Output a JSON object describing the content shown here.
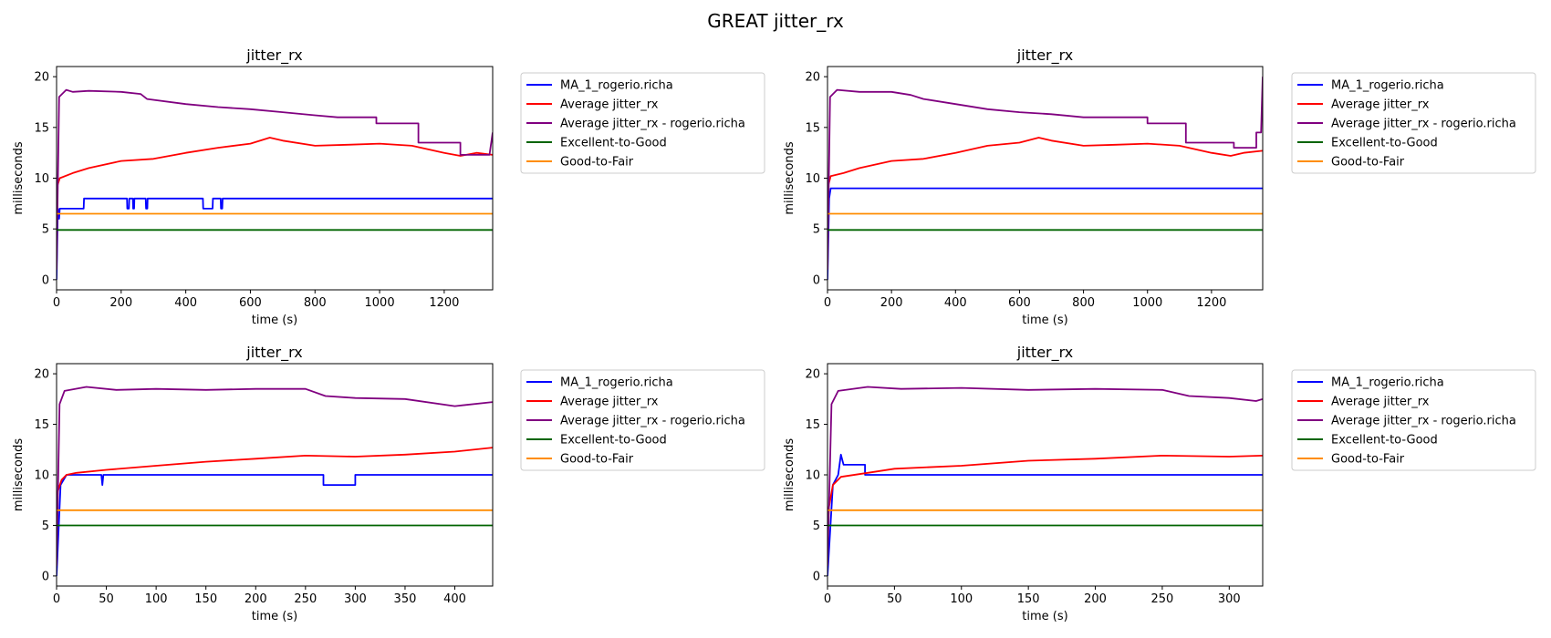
{
  "figure": {
    "title": "GREAT jitter_rx"
  },
  "legend": {
    "entries": [
      {
        "label": "MA_1_rogerio.richa",
        "color": "#0000ff"
      },
      {
        "label": "Average jitter_rx",
        "color": "#ff0000"
      },
      {
        "label": "Average jitter_rx - rogerio.richa",
        "color": "#800080"
      },
      {
        "label": "Excellent-to-Good",
        "color": "#006400"
      },
      {
        "label": "Good-to-Fair",
        "color": "#ff8c00"
      }
    ]
  },
  "chart_data": [
    {
      "type": "line",
      "title": "jitter_rx",
      "xlabel": "time (s)",
      "ylabel": "milliseconds",
      "xlim": [
        0,
        1350
      ],
      "ylim": [
        -1,
        21
      ],
      "xticks": [
        0,
        200,
        400,
        600,
        800,
        1000,
        1200
      ],
      "yticks": [
        0,
        5,
        10,
        15,
        20
      ],
      "legend_position": "outside-right",
      "series": [
        {
          "name": "MA_1_rogerio.richa",
          "color": "#0000ff",
          "points": [
            [
              0,
              0
            ],
            [
              4,
              7
            ],
            [
              8,
              6
            ],
            [
              10,
              7
            ],
            [
              84,
              7
            ],
            [
              85,
              8
            ],
            [
              218,
              8
            ],
            [
              219,
              7
            ],
            [
              224,
              7
            ],
            [
              225,
              8
            ],
            [
              236,
              8
            ],
            [
              237,
              7
            ],
            [
              240,
              7
            ],
            [
              241,
              8
            ],
            [
              276,
              8
            ],
            [
              277,
              7
            ],
            [
              281,
              7
            ],
            [
              282,
              8
            ],
            [
              453,
              8
            ],
            [
              454,
              7
            ],
            [
              483,
              7
            ],
            [
              484,
              8
            ],
            [
              508,
              8
            ],
            [
              509,
              7
            ],
            [
              513,
              7
            ],
            [
              514,
              8
            ],
            [
              1350,
              8
            ]
          ]
        },
        {
          "name": "Average jitter_rx",
          "color": "#ff0000",
          "points": [
            [
              0,
              9
            ],
            [
              10,
              10
            ],
            [
              50,
              10.5
            ],
            [
              100,
              11
            ],
            [
              200,
              11.7
            ],
            [
              300,
              11.9
            ],
            [
              400,
              12.5
            ],
            [
              500,
              13
            ],
            [
              600,
              13.4
            ],
            [
              660,
              14
            ],
            [
              700,
              13.7
            ],
            [
              800,
              13.2
            ],
            [
              900,
              13.3
            ],
            [
              1000,
              13.4
            ],
            [
              1100,
              13.2
            ],
            [
              1200,
              12.5
            ],
            [
              1250,
              12.2
            ],
            [
              1300,
              12.5
            ],
            [
              1350,
              12.3
            ]
          ]
        },
        {
          "name": "Average jitter_rx - rogerio.richa",
          "color": "#800080",
          "points": [
            [
              0,
              1
            ],
            [
              8,
              18
            ],
            [
              30,
              18.7
            ],
            [
              50,
              18.5
            ],
            [
              100,
              18.6
            ],
            [
              200,
              18.5
            ],
            [
              260,
              18.3
            ],
            [
              280,
              17.8
            ],
            [
              400,
              17.3
            ],
            [
              500,
              17
            ],
            [
              600,
              16.8
            ],
            [
              700,
              16.5
            ],
            [
              800,
              16.2
            ],
            [
              870,
              16
            ],
            [
              990,
              16
            ],
            [
              990,
              15.4
            ],
            [
              1120,
              15.4
            ],
            [
              1120,
              13.5
            ],
            [
              1250,
              13.5
            ],
            [
              1250,
              12.3
            ],
            [
              1340,
              12.3
            ],
            [
              1350,
              14.5
            ]
          ]
        },
        {
          "name": "Excellent-to-Good",
          "color": "#006400",
          "points": [
            [
              0,
              4.9
            ],
            [
              1350,
              4.9
            ]
          ]
        },
        {
          "name": "Good-to-Fair",
          "color": "#ff8c00",
          "points": [
            [
              0,
              6.5
            ],
            [
              1350,
              6.5
            ]
          ]
        }
      ]
    },
    {
      "type": "line",
      "title": "jitter_rx",
      "xlabel": "time (s)",
      "ylabel": "milliseconds",
      "xlim": [
        0,
        1360
      ],
      "ylim": [
        -1,
        21
      ],
      "xticks": [
        0,
        200,
        400,
        600,
        800,
        1000,
        1200
      ],
      "yticks": [
        0,
        5,
        10,
        15,
        20
      ],
      "legend_position": "outside-right",
      "series": [
        {
          "name": "MA_1_rogerio.richa",
          "color": "#0000ff",
          "points": [
            [
              0,
              0
            ],
            [
              5,
              8
            ],
            [
              10,
              9
            ],
            [
              1360,
              9
            ]
          ]
        },
        {
          "name": "Average jitter_rx",
          "color": "#ff0000",
          "points": [
            [
              0,
              9
            ],
            [
              10,
              10.2
            ],
            [
              50,
              10.5
            ],
            [
              100,
              11
            ],
            [
              200,
              11.7
            ],
            [
              300,
              11.9
            ],
            [
              400,
              12.5
            ],
            [
              500,
              13.2
            ],
            [
              600,
              13.5
            ],
            [
              660,
              14
            ],
            [
              700,
              13.7
            ],
            [
              800,
              13.2
            ],
            [
              900,
              13.3
            ],
            [
              1000,
              13.4
            ],
            [
              1100,
              13.2
            ],
            [
              1200,
              12.5
            ],
            [
              1260,
              12.2
            ],
            [
              1300,
              12.5
            ],
            [
              1360,
              12.7
            ]
          ]
        },
        {
          "name": "Average jitter_rx - rogerio.richa",
          "color": "#800080",
          "points": [
            [
              0,
              1
            ],
            [
              8,
              18
            ],
            [
              30,
              18.7
            ],
            [
              100,
              18.5
            ],
            [
              200,
              18.5
            ],
            [
              260,
              18.2
            ],
            [
              300,
              17.8
            ],
            [
              400,
              17.3
            ],
            [
              500,
              16.8
            ],
            [
              600,
              16.5
            ],
            [
              700,
              16.3
            ],
            [
              800,
              16
            ],
            [
              1000,
              16
            ],
            [
              1000,
              15.4
            ],
            [
              1120,
              15.4
            ],
            [
              1120,
              13.5
            ],
            [
              1270,
              13.5
            ],
            [
              1270,
              13
            ],
            [
              1340,
              13
            ],
            [
              1340,
              14.5
            ],
            [
              1355,
              14.5
            ],
            [
              1360,
              20
            ]
          ]
        },
        {
          "name": "Excellent-to-Good",
          "color": "#006400",
          "points": [
            [
              0,
              4.9
            ],
            [
              1360,
              4.9
            ]
          ]
        },
        {
          "name": "Good-to-Fair",
          "color": "#ff8c00",
          "points": [
            [
              0,
              6.5
            ],
            [
              1360,
              6.5
            ]
          ]
        }
      ]
    },
    {
      "type": "line",
      "title": "jitter_rx",
      "xlabel": "time (s)",
      "ylabel": "milliseconds",
      "xlim": [
        0,
        438
      ],
      "ylim": [
        -1,
        21
      ],
      "xticks": [
        0,
        50,
        100,
        150,
        200,
        250,
        300,
        350,
        400
      ],
      "yticks": [
        0,
        5,
        10,
        15,
        20
      ],
      "legend_position": "outside-right",
      "series": [
        {
          "name": "MA_1_rogerio.richa",
          "color": "#0000ff",
          "points": [
            [
              0,
              0
            ],
            [
              4,
              9
            ],
            [
              10,
              10
            ],
            [
              45,
              10
            ],
            [
              46,
              9
            ],
            [
              47,
              10
            ],
            [
              268,
              10
            ],
            [
              268,
              9
            ],
            [
              300,
              9
            ],
            [
              300,
              10
            ],
            [
              438,
              10
            ]
          ]
        },
        {
          "name": "Average jitter_rx",
          "color": "#ff0000",
          "points": [
            [
              0,
              8
            ],
            [
              5,
              9.5
            ],
            [
              10,
              10
            ],
            [
              20,
              10.2
            ],
            [
              50,
              10.5
            ],
            [
              100,
              10.9
            ],
            [
              150,
              11.3
            ],
            [
              200,
              11.6
            ],
            [
              250,
              11.9
            ],
            [
              300,
              11.8
            ],
            [
              350,
              12
            ],
            [
              400,
              12.3
            ],
            [
              438,
              12.7
            ]
          ]
        },
        {
          "name": "Average jitter_rx - rogerio.richa",
          "color": "#800080",
          "points": [
            [
              0,
              1
            ],
            [
              3,
              17
            ],
            [
              8,
              18.3
            ],
            [
              30,
              18.7
            ],
            [
              60,
              18.4
            ],
            [
              100,
              18.5
            ],
            [
              150,
              18.4
            ],
            [
              200,
              18.5
            ],
            [
              250,
              18.5
            ],
            [
              270,
              17.8
            ],
            [
              300,
              17.6
            ],
            [
              350,
              17.5
            ],
            [
              400,
              16.8
            ],
            [
              438,
              17.2
            ]
          ]
        },
        {
          "name": "Excellent-to-Good",
          "color": "#006400",
          "points": [
            [
              0,
              5
            ],
            [
              438,
              5
            ]
          ]
        },
        {
          "name": "Good-to-Fair",
          "color": "#ff8c00",
          "points": [
            [
              0,
              6.5
            ],
            [
              438,
              6.5
            ]
          ]
        }
      ]
    },
    {
      "type": "line",
      "title": "jitter_rx",
      "xlabel": "time (s)",
      "ylabel": "milliseconds",
      "xlim": [
        0,
        325
      ],
      "ylim": [
        -1,
        21
      ],
      "xticks": [
        0,
        50,
        100,
        150,
        200,
        250,
        300
      ],
      "yticks": [
        0,
        5,
        10,
        15,
        20
      ],
      "legend_position": "outside-right",
      "series": [
        {
          "name": "MA_1_rogerio.richa",
          "color": "#0000ff",
          "points": [
            [
              0,
              0
            ],
            [
              4,
              9
            ],
            [
              8,
              10
            ],
            [
              10,
              12
            ],
            [
              12,
              11
            ],
            [
              28,
              11
            ],
            [
              28,
              10
            ],
            [
              325,
              10
            ]
          ]
        },
        {
          "name": "Average jitter_rx",
          "color": "#ff0000",
          "points": [
            [
              0,
              6
            ],
            [
              4,
              9
            ],
            [
              10,
              9.8
            ],
            [
              30,
              10.2
            ],
            [
              50,
              10.6
            ],
            [
              100,
              10.9
            ],
            [
              150,
              11.4
            ],
            [
              200,
              11.6
            ],
            [
              250,
              11.9
            ],
            [
              300,
              11.8
            ],
            [
              325,
              11.9
            ]
          ]
        },
        {
          "name": "Average jitter_rx - rogerio.richa",
          "color": "#800080",
          "points": [
            [
              0,
              1
            ],
            [
              3,
              17
            ],
            [
              8,
              18.3
            ],
            [
              30,
              18.7
            ],
            [
              55,
              18.5
            ],
            [
              100,
              18.6
            ],
            [
              150,
              18.4
            ],
            [
              200,
              18.5
            ],
            [
              250,
              18.4
            ],
            [
              270,
              17.8
            ],
            [
              300,
              17.6
            ],
            [
              320,
              17.3
            ],
            [
              325,
              17.5
            ]
          ]
        },
        {
          "name": "Excellent-to-Good",
          "color": "#006400",
          "points": [
            [
              0,
              5
            ],
            [
              325,
              5
            ]
          ]
        },
        {
          "name": "Good-to-Fair",
          "color": "#ff8c00",
          "points": [
            [
              0,
              6.5
            ],
            [
              325,
              6.5
            ]
          ]
        }
      ]
    }
  ]
}
